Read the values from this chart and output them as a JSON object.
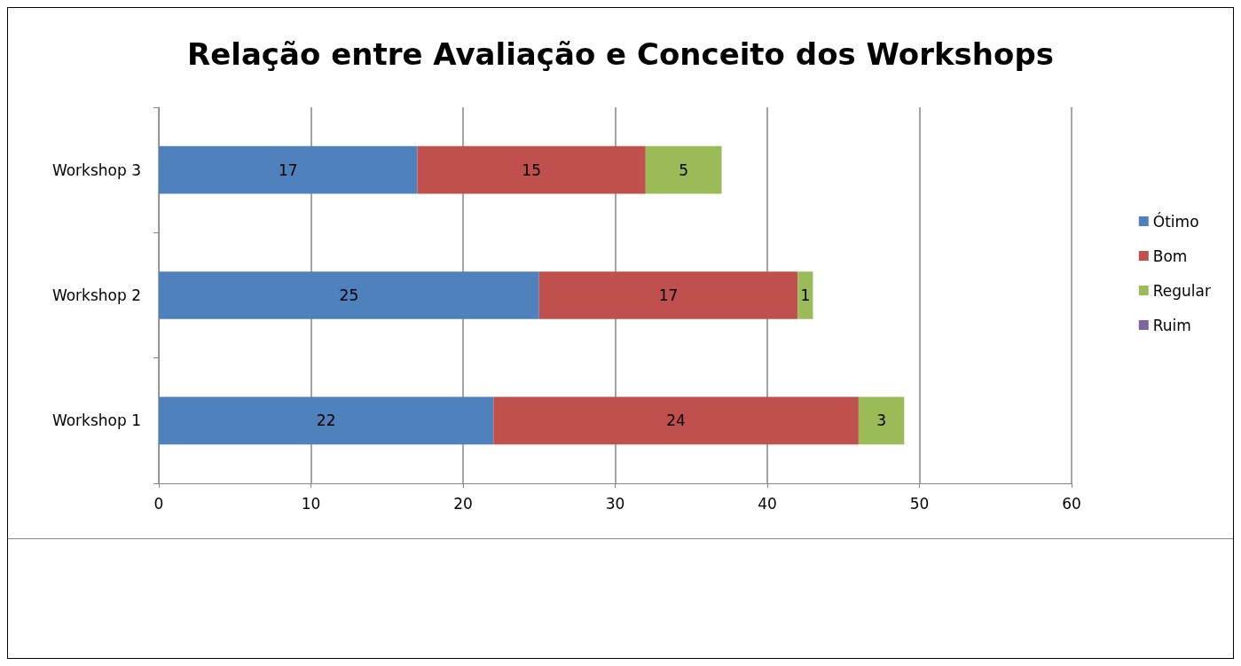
{
  "chart_data": {
    "type": "bar",
    "orientation": "horizontal",
    "stacked": true,
    "title": "Relação entre Avaliação e Conceito dos Workshops",
    "categories": [
      "Workshop 3",
      "Workshop 2",
      "Workshop 1"
    ],
    "series": [
      {
        "name": "Ótimo",
        "color": "#4f81bd",
        "values": [
          17,
          25,
          22
        ]
      },
      {
        "name": "Bom",
        "color": "#c0504d",
        "values": [
          15,
          17,
          24
        ]
      },
      {
        "name": "Regular",
        "color": "#9bbb59",
        "values": [
          5,
          1,
          3
        ]
      },
      {
        "name": "Ruim",
        "color": "#8064a2",
        "values": [
          null,
          null,
          null
        ]
      }
    ],
    "xlim": [
      0,
      60
    ],
    "xticks": [
      0,
      10,
      20,
      30,
      40,
      50,
      60
    ],
    "grid": "x",
    "legend": "right",
    "data_labels": true
  }
}
